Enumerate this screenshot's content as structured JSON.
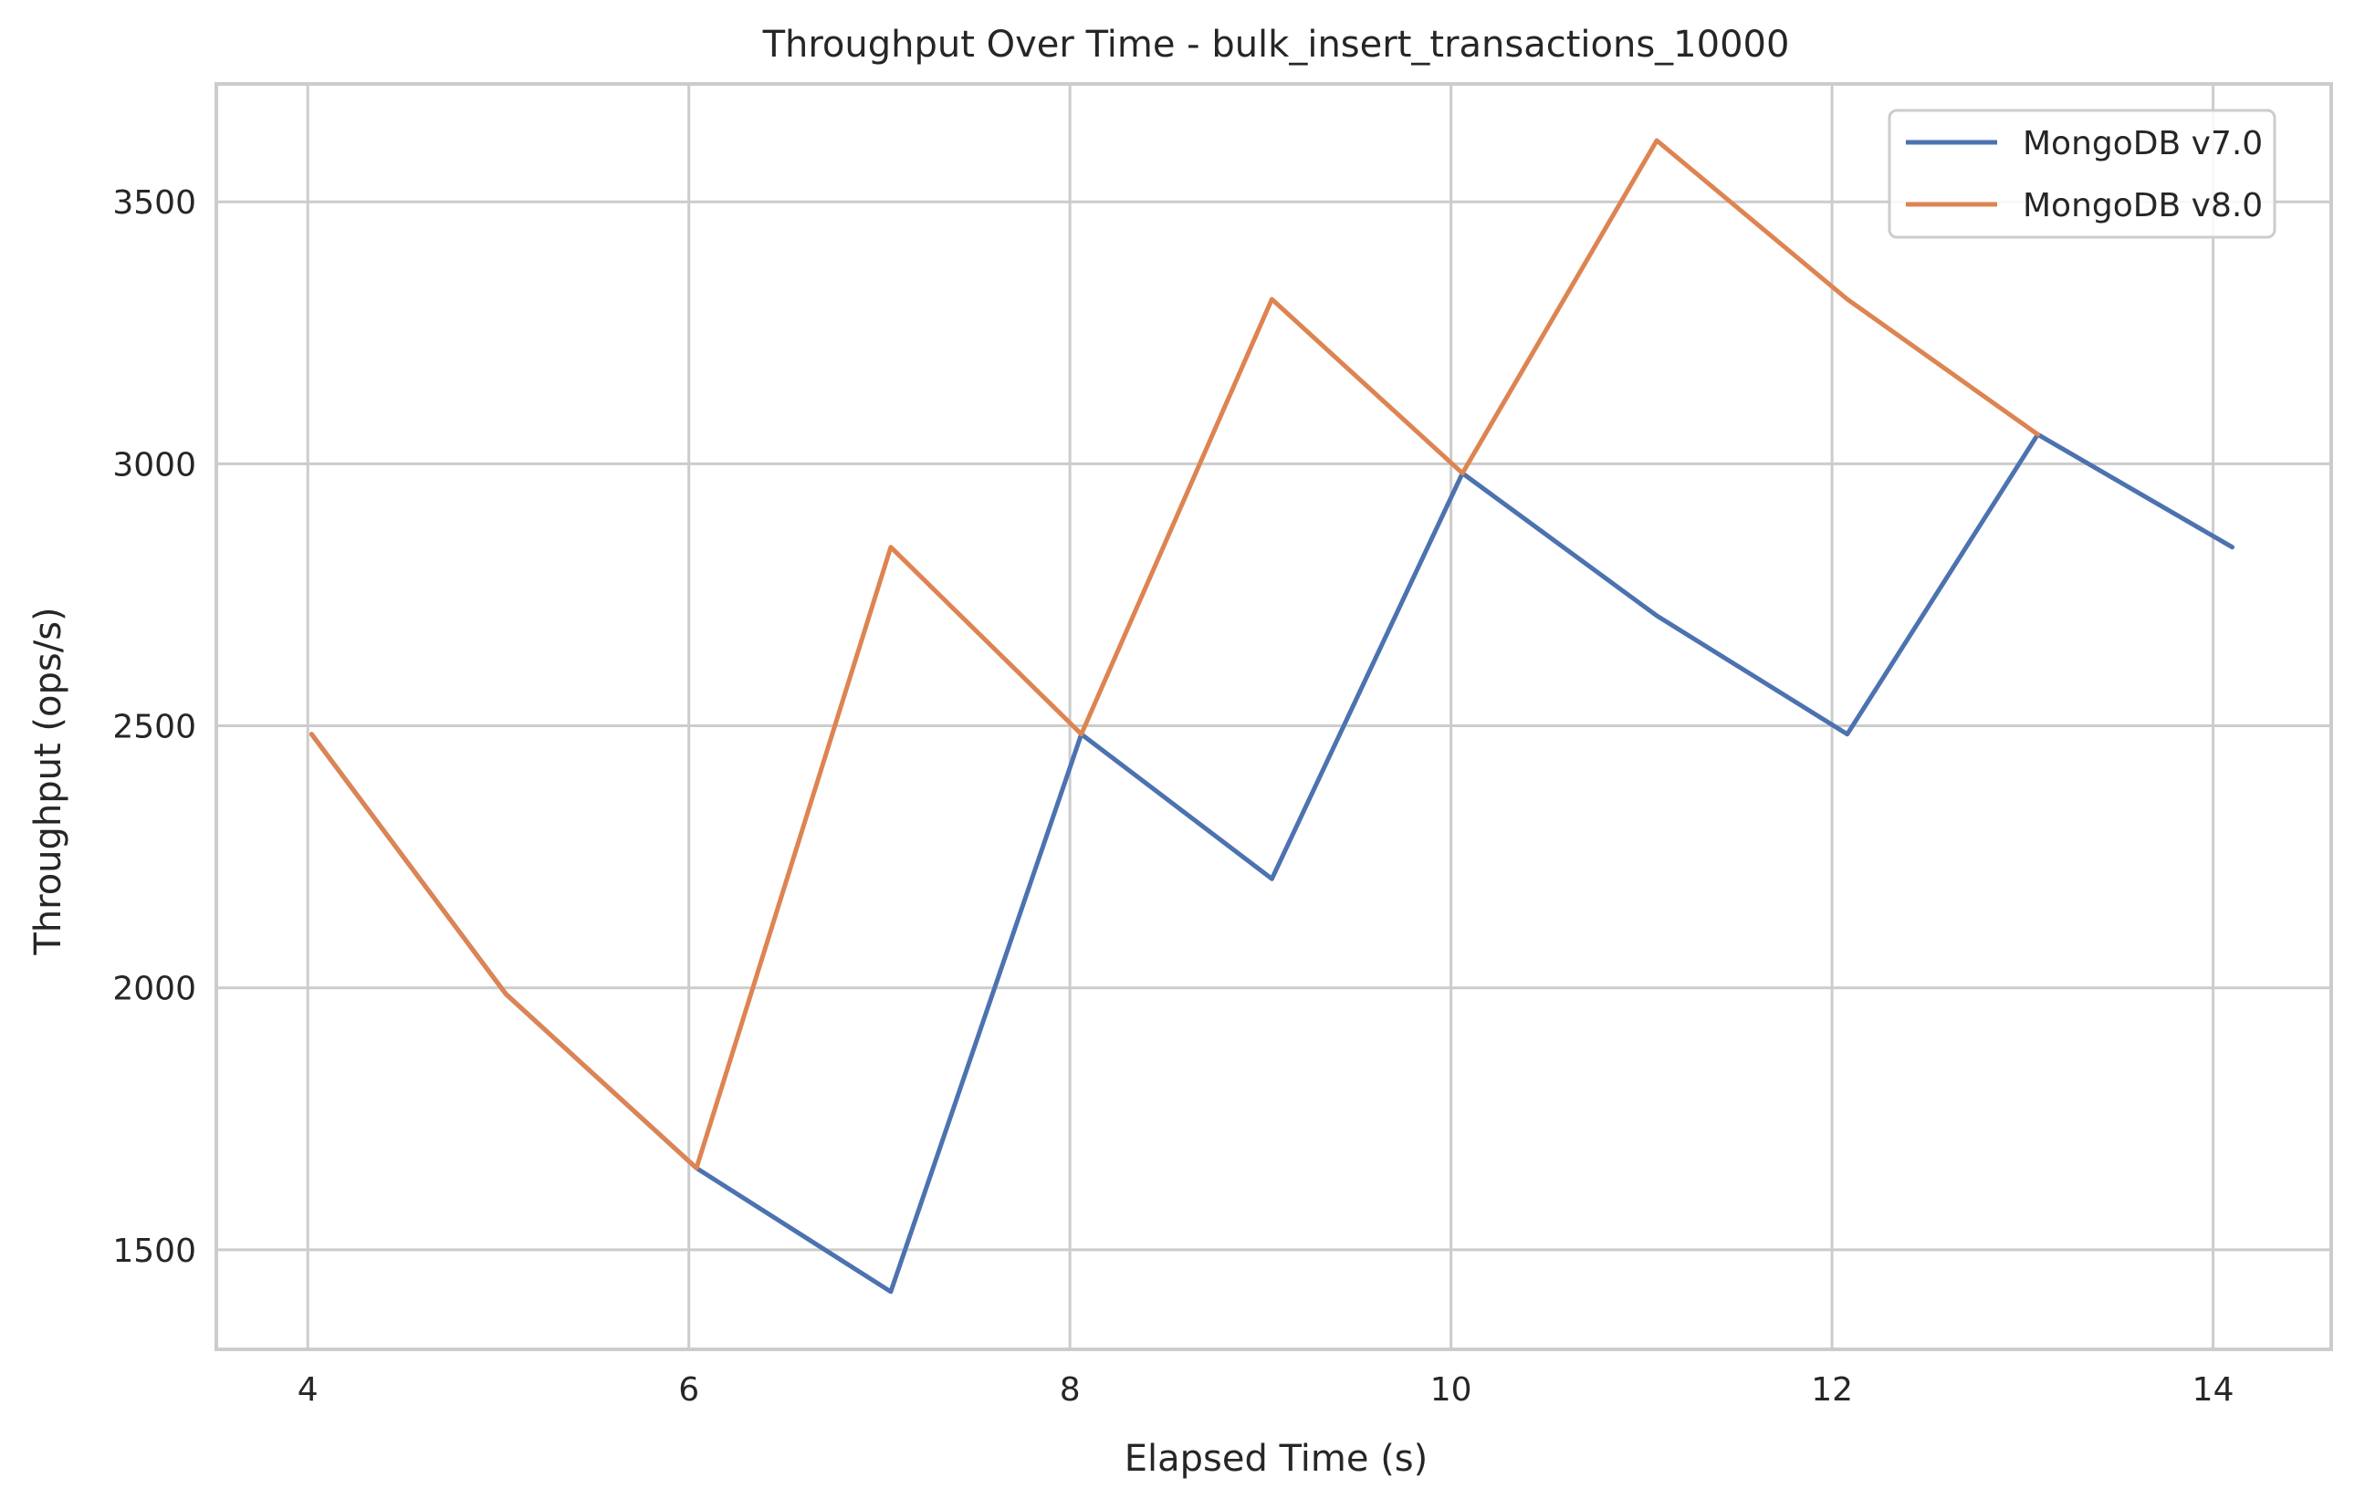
{
  "chart_data": {
    "type": "line",
    "title": "Throughput Over Time - bulk_insert_transactions_10000",
    "xlabel": "Elapsed Time (s)",
    "ylabel": "Throughput (ops/s)",
    "xlim": [
      3.52,
      14.62
    ],
    "ylim": [
      1310,
      3725
    ],
    "xticks": [
      4,
      6,
      8,
      10,
      12,
      14
    ],
    "yticks": [
      1500,
      2000,
      2500,
      3000,
      3500
    ],
    "grid": true,
    "legend_position": "top-right",
    "series": [
      {
        "name": "MongoDB v7.0",
        "color": "#4c72b0",
        "x": [
          4.02,
          5.04,
          6.04,
          7.06,
          8.06,
          9.06,
          10.06,
          11.08,
          12.08,
          13.08,
          14.1
        ],
        "y": [
          2484,
          1988,
          1656,
          1420,
          2484,
          2208,
          2982,
          2710,
          2484,
          3056,
          2841
        ]
      },
      {
        "name": "MongoDB v8.0",
        "color": "#dd8452",
        "x": [
          4.02,
          5.04,
          6.04,
          7.06,
          8.06,
          9.06,
          10.06,
          11.08,
          12.08,
          13.08
        ],
        "y": [
          2484,
          1988,
          1656,
          2841,
          2484,
          3314,
          2982,
          3617,
          3314,
          3056
        ]
      }
    ]
  }
}
